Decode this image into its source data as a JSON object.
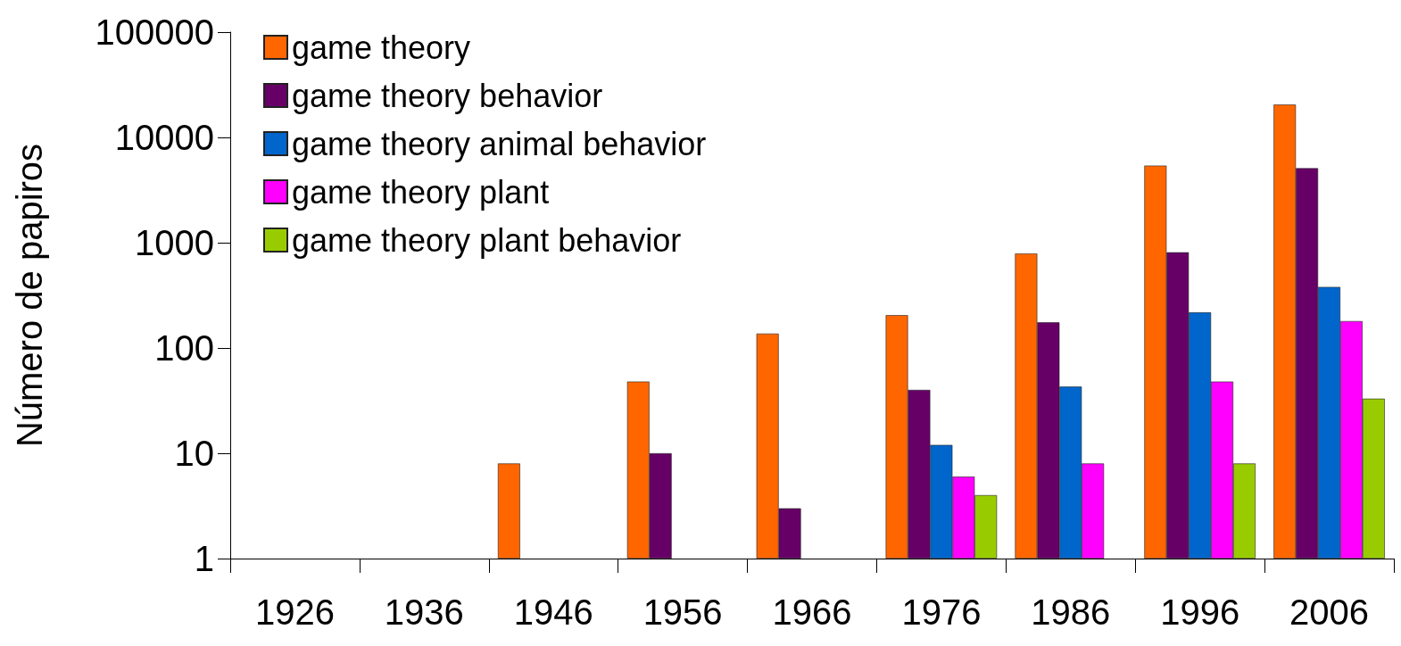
{
  "chart_data": {
    "type": "bar",
    "ylabel": "Número de papiros",
    "categories": [
      "1926",
      "1936",
      "1946",
      "1956",
      "1966",
      "1976",
      "1986",
      "1996",
      "2006"
    ],
    "series": [
      {
        "name": "game theory",
        "color": "#ff6600",
        "values": [
          null,
          null,
          8,
          48,
          137,
          205,
          790,
          5400,
          20500
        ]
      },
      {
        "name": "game theory behavior",
        "color": "#660066",
        "values": [
          null,
          null,
          null,
          10,
          3,
          40,
          175,
          810,
          5100
        ]
      },
      {
        "name": "game theory animal behavior",
        "color": "#0066cc",
        "values": [
          null,
          null,
          null,
          null,
          null,
          12,
          43,
          218,
          380
        ]
      },
      {
        "name": "game theory plant",
        "color": "#ff00ff",
        "values": [
          null,
          null,
          null,
          null,
          null,
          6,
          8,
          48,
          180
        ]
      },
      {
        "name": "game theory plant behavior",
        "color": "#99cc00",
        "values": [
          null,
          null,
          null,
          null,
          null,
          4,
          null,
          8,
          33
        ]
      }
    ],
    "log": "y",
    "ylim": [
      1,
      100000
    ],
    "yticks": [
      1,
      10,
      100,
      1000,
      10000,
      100000
    ],
    "grid": false,
    "legend": "top left"
  }
}
